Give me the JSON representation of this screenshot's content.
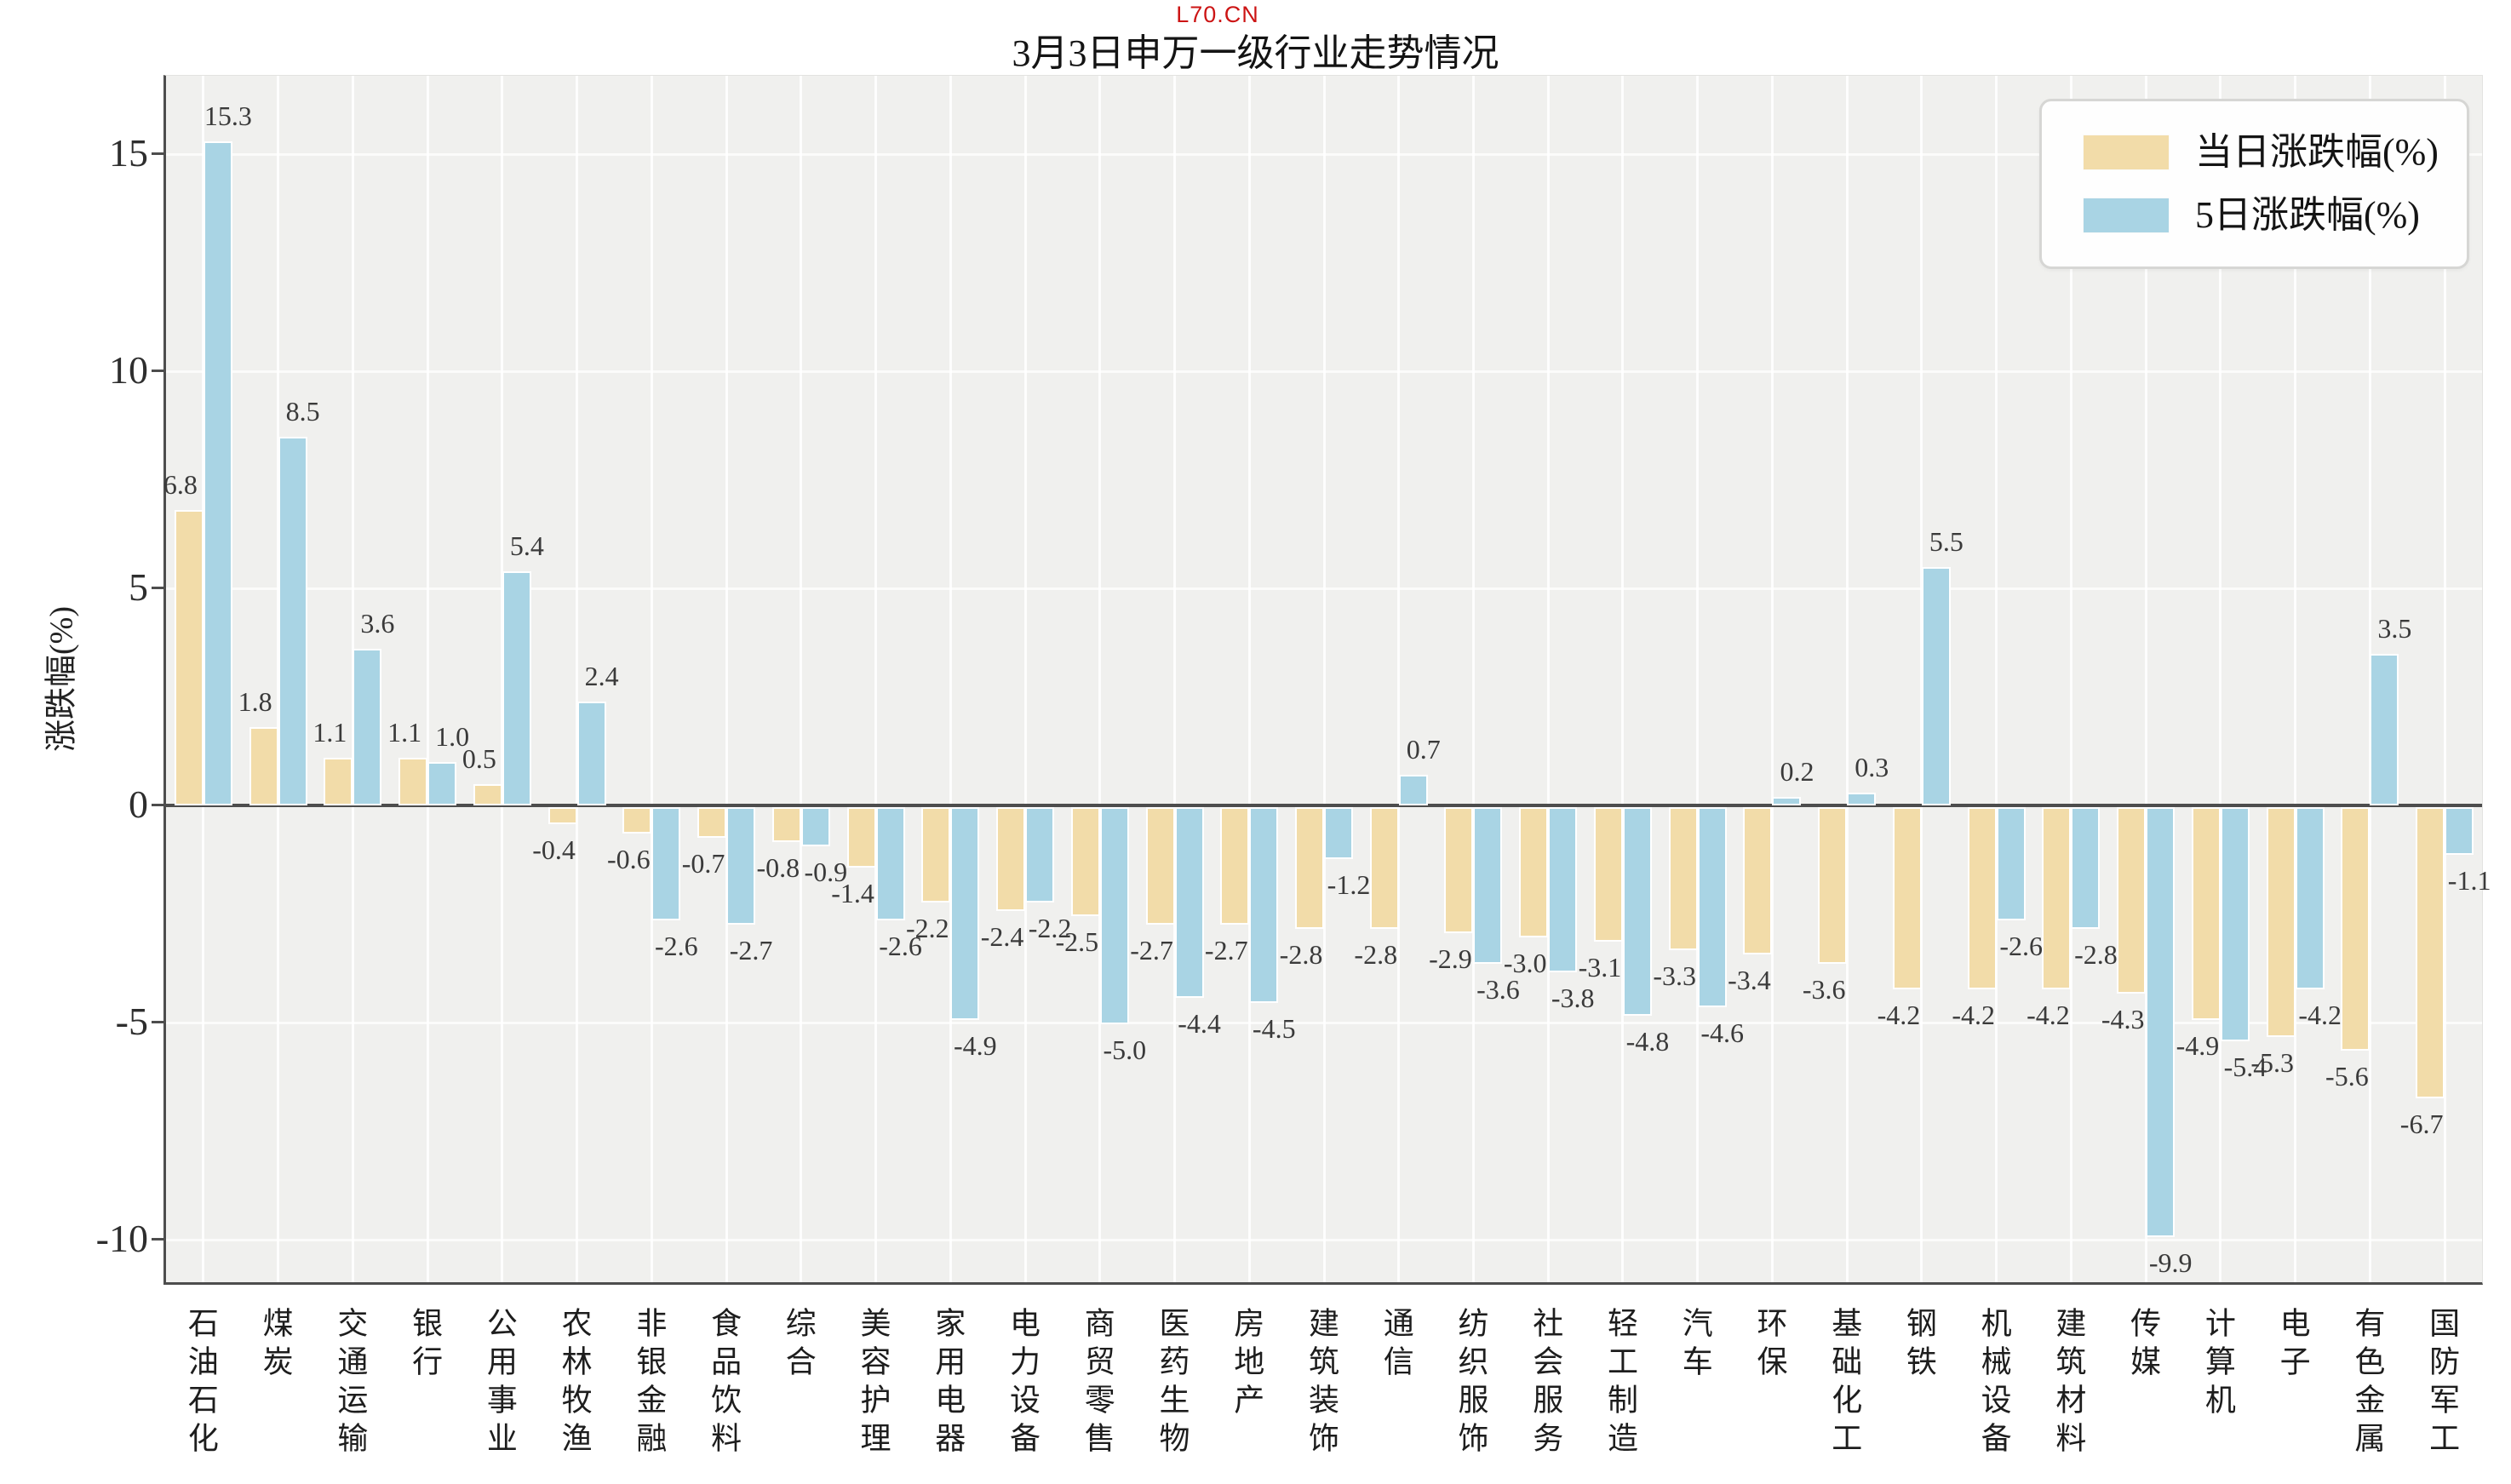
{
  "watermark": "L70.CN",
  "title": "3月3日申万一级行业走势情况",
  "y_axis_label": "涨跌幅(%)",
  "legend": {
    "series1_label": "当日涨跌幅(%)",
    "series2_label": "5日涨跌幅(%)"
  },
  "colors": {
    "daily_bar": "#F2DCA9",
    "five_day_bar": "#A9D4E4",
    "bar_edge": "#ffffff",
    "axis": "#4d4d4d",
    "plot_background": "#f0f0ee",
    "watermark_red": "#cc1414"
  },
  "y_ticks": [
    15,
    10,
    5,
    0,
    -5,
    -10
  ],
  "chart_data": {
    "type": "bar",
    "title": "3月3日申万一级行业走势情况",
    "xlabel": "",
    "ylabel": "涨跌幅(%)",
    "ylim": [
      -11.0,
      16.8
    ],
    "grid": true,
    "legend_position": "upper-right",
    "value_labels_shown": true,
    "categories": [
      "石油石化",
      "煤炭",
      "交通运输",
      "银行",
      "公用事业",
      "农林牧渔",
      "非银金融",
      "食品饮料",
      "综合",
      "美容护理",
      "家用电器",
      "电力设备",
      "商贸零售",
      "医药生物",
      "房地产",
      "建筑装饰",
      "通信",
      "纺织服饰",
      "社会服务",
      "轻工制造",
      "汽车",
      "环保",
      "基础化工",
      "钢铁",
      "机械设备",
      "建筑材料",
      "传媒",
      "计算机",
      "电子",
      "有色金属",
      "国防军工"
    ],
    "series": [
      {
        "name": "当日涨跌幅(%)",
        "color": "#F2DCA9",
        "values": [
          6.8,
          1.8,
          1.1,
          1.1,
          0.5,
          -0.4,
          -0.6,
          -0.7,
          -0.8,
          -1.4,
          -2.2,
          -2.4,
          -2.5,
          -2.7,
          -2.7,
          -2.8,
          -2.8,
          -2.9,
          -3.0,
          -3.1,
          -3.3,
          -3.4,
          -3.6,
          -4.2,
          -4.2,
          -4.2,
          -4.3,
          -4.9,
          -5.3,
          -5.6,
          -6.7
        ]
      },
      {
        "name": "5日涨跌幅(%)",
        "color": "#A9D4E4",
        "values": [
          15.3,
          8.5,
          3.6,
          1.0,
          5.4,
          2.4,
          -2.6,
          -2.7,
          -0.9,
          -2.6,
          -4.9,
          -2.2,
          -5.0,
          -4.4,
          -4.5,
          -1.2,
          0.7,
          -3.6,
          -3.8,
          -4.8,
          -4.6,
          0.2,
          0.3,
          5.5,
          -2.6,
          -2.8,
          -9.9,
          -5.4,
          -4.2,
          3.5,
          -1.1
        ]
      }
    ]
  }
}
